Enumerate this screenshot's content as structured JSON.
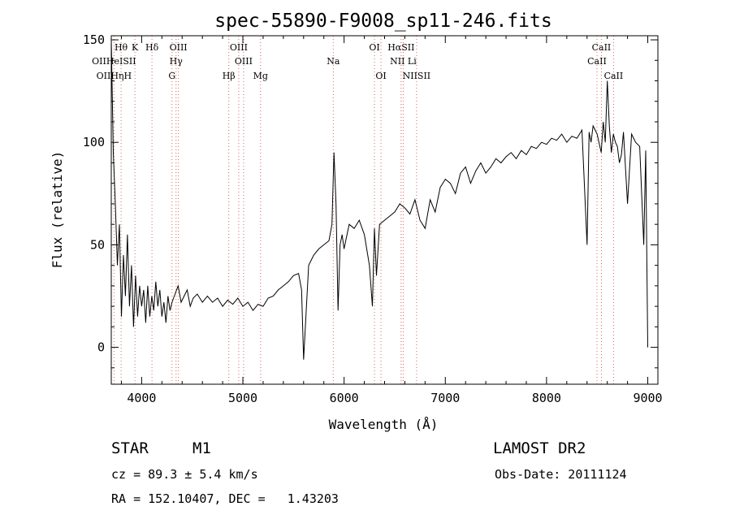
{
  "chart_data": {
    "type": "line",
    "title": "spec-55890-F9008_sp11-246.fits",
    "xlabel": "Wavelength (Å)",
    "ylabel": "Flux (relative)",
    "xlim": [
      3700,
      9100
    ],
    "ylim": [
      -18,
      152
    ],
    "xticks": [
      4000,
      5000,
      6000,
      7000,
      8000,
      9000
    ],
    "yticks": [
      0,
      50,
      100,
      150
    ],
    "grid": false,
    "series": [
      {
        "x": [
          3700,
          3720,
          3740,
          3760,
          3780,
          3800,
          3820,
          3840,
          3860,
          3880,
          3900,
          3920,
          3940,
          3960,
          3980,
          4000,
          4020,
          4040,
          4060,
          4080,
          4100,
          4120,
          4140,
          4160,
          4180,
          4200,
          4220,
          4240,
          4260,
          4280,
          4300,
          4330,
          4360,
          4390,
          4420,
          4450,
          4480,
          4510,
          4550,
          4600,
          4650,
          4700,
          4750,
          4800,
          4850,
          4900,
          4950,
          5000,
          5050,
          5100,
          5150,
          5200,
          5250,
          5300,
          5350,
          5400,
          5450,
          5500,
          5550,
          5580,
          5600,
          5650,
          5700,
          5750,
          5800,
          5850,
          5880,
          5900,
          5920,
          5940,
          5960,
          5980,
          6000,
          6050,
          6100,
          6150,
          6200,
          6250,
          6280,
          6300,
          6320,
          6350,
          6400,
          6450,
          6500,
          6550,
          6600,
          6650,
          6700,
          6750,
          6800,
          6850,
          6900,
          6950,
          7000,
          7050,
          7100,
          7150,
          7200,
          7250,
          7300,
          7350,
          7400,
          7450,
          7500,
          7550,
          7600,
          7650,
          7700,
          7750,
          7800,
          7850,
          7900,
          7950,
          8000,
          8050,
          8100,
          8150,
          8200,
          8250,
          8300,
          8350,
          8400,
          8420,
          8440,
          8460,
          8500,
          8540,
          8560,
          8580,
          8600,
          8620,
          8640,
          8660,
          8680,
          8700,
          8720,
          8740,
          8760,
          8800,
          8840,
          8880,
          8920,
          8960,
          8980,
          9000
        ],
        "y": [
          150,
          95,
          70,
          40,
          60,
          15,
          45,
          25,
          55,
          20,
          40,
          10,
          35,
          15,
          30,
          20,
          28,
          12,
          30,
          15,
          25,
          18,
          32,
          20,
          28,
          15,
          22,
          12,
          25,
          18,
          22,
          26,
          30,
          22,
          25,
          28,
          20,
          24,
          26,
          22,
          25,
          22,
          24,
          20,
          23,
          21,
          24,
          20,
          22,
          18,
          21,
          20,
          24,
          25,
          28,
          30,
          32,
          35,
          36,
          28,
          -6,
          40,
          45,
          48,
          50,
          52,
          60,
          95,
          70,
          18,
          50,
          55,
          48,
          60,
          58,
          62,
          55,
          40,
          20,
          58,
          35,
          60,
          62,
          64,
          66,
          70,
          68,
          65,
          72,
          62,
          58,
          72,
          66,
          78,
          82,
          80,
          75,
          85,
          88,
          80,
          86,
          90,
          85,
          88,
          92,
          90,
          93,
          95,
          92,
          96,
          94,
          98,
          97,
          100,
          99,
          102,
          101,
          104,
          100,
          103,
          102,
          106,
          50,
          105,
          100,
          108,
          104,
          95,
          110,
          100,
          130,
          108,
          95,
          104,
          100,
          98,
          90,
          94,
          105,
          70,
          104,
          100,
          98,
          50,
          96,
          0
        ]
      }
    ],
    "spectral_lines": [
      {
        "label": "Hθ",
        "x": 3797,
        "row": 1
      },
      {
        "label": "K",
        "x": 3934,
        "row": 1
      },
      {
        "label": "Hδ",
        "x": 4102,
        "row": 1
      },
      {
        "label": "OIII",
        "x": 4363,
        "row": 1
      },
      {
        "label": "OIII",
        "x": 4959,
        "row": 1
      },
      {
        "label": "OI",
        "x": 6300,
        "row": 1
      },
      {
        "label": "HαSII",
        "x": 6563,
        "row": 1
      },
      {
        "label": "CaII",
        "x": 8542,
        "row": 1
      },
      {
        "label": "OIIHeISII",
        "x": 3727,
        "row": 2
      },
      {
        "label": "Hγ",
        "x": 4340,
        "row": 2
      },
      {
        "label": "OIII",
        "x": 5007,
        "row": 2
      },
      {
        "label": "Na",
        "x": 5893,
        "row": 2
      },
      {
        "label": "NII Li",
        "x": 6584,
        "row": 2
      },
      {
        "label": "CaII",
        "x": 8498,
        "row": 2
      },
      {
        "label": "OIIHηH",
        "x": 3727,
        "row": 3
      },
      {
        "label": "G",
        "x": 4300,
        "row": 3
      },
      {
        "label": "Hβ",
        "x": 4861,
        "row": 3
      },
      {
        "label": "Mg",
        "x": 5175,
        "row": 3
      },
      {
        "label": "OI",
        "x": 6364,
        "row": 3
      },
      {
        "label": "NIISII",
        "x": 6716,
        "row": 3
      },
      {
        "label": "CaII",
        "x": 8662,
        "row": 3
      }
    ]
  },
  "info": {
    "object_class": "STAR",
    "subclass": "M1",
    "survey": "LAMOST DR2",
    "redshift": "cz = 89.3 ± 5.4 km/s",
    "obs_date": "Obs-Date: 20111124",
    "coords": "RA = 152.10407, DEC =   1.43203"
  }
}
